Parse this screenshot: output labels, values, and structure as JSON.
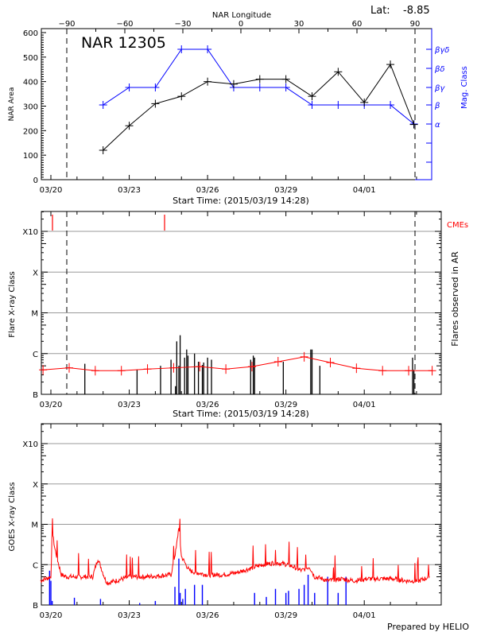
{
  "header": {
    "lat_label": "Lat:",
    "lat_value": "-8.85",
    "footer": "Prepared by HELIO"
  },
  "colors": {
    "area": "#000000",
    "mag": "#0000ff",
    "cme": "#ff0000",
    "goes_long": "#ff0000",
    "goes_short": "#0000ff",
    "grid": "#999999",
    "flare_bar": "#000000",
    "trend": "#ff0000"
  },
  "chart_data": [
    {
      "type": "line",
      "title": "NAR 12305",
      "xlabel": "Start Time: (2015/03/19 14:28)",
      "ylabel": "NAR Area",
      "y2label": "Mag. Class",
      "top_xlabel": "NAR Longitude",
      "x_unit": "days since 2015/03/19 14:28",
      "xlim": [
        0,
        14.9
      ],
      "ylim": [
        0,
        600
      ],
      "x_tick_labels": [
        {
          "label": "03/20",
          "day": 0.4
        },
        {
          "label": "03/23",
          "day": 3.4
        },
        {
          "label": "03/26",
          "day": 6.4
        },
        {
          "label": "03/29",
          "day": 9.4
        },
        {
          "label": "04/01",
          "day": 12.4
        }
      ],
      "y_ticks": [
        0,
        100,
        200,
        300,
        400,
        500,
        600
      ],
      "top_ticks": [
        {
          "label": "-90",
          "lon": -90
        },
        {
          "label": "-60",
          "lon": -60
        },
        {
          "label": "-30",
          "lon": -30
        },
        {
          "label": "0",
          "lon": 0
        },
        {
          "label": "30",
          "lon": 30
        },
        {
          "label": "60",
          "lon": 60
        },
        {
          "label": "90",
          "lon": 90
        }
      ],
      "limb_days": [
        1.0,
        14.3
      ],
      "mag_classes": [
        "α",
        "β",
        "βγ",
        "βδ",
        "βγδ"
      ],
      "series": [
        {
          "name": "NAR Area",
          "x": [
            2.4,
            3.4,
            4.4,
            5.4,
            6.4,
            7.4,
            8.4,
            9.4,
            10.4,
            11.4,
            12.4,
            13.4,
            14.3
          ],
          "values": [
            120,
            220,
            310,
            340,
            400,
            390,
            410,
            410,
            340,
            440,
            315,
            470,
            225
          ]
        },
        {
          "name": "Mag. Class",
          "x": [
            2.4,
            3.4,
            4.4,
            5.4,
            6.4,
            7.4,
            8.4,
            9.4,
            10.4,
            11.4,
            12.4,
            13.4,
            14.3
          ],
          "values": [
            "β",
            "βγ",
            "βγ",
            "βγδ",
            "βγδ",
            "βγ",
            "βγ",
            "βγ",
            "β",
            "β",
            "β",
            "β",
            "α"
          ]
        }
      ]
    },
    {
      "type": "bar",
      "xlabel": "Start Time: (2015/03/19 14:28)",
      "ylabel": "Flare X-ray Class",
      "y2label": "Flares observed in AR",
      "legend": "CMEs",
      "xlim": [
        0,
        14.9
      ],
      "y_tick_labels": [
        "B",
        "C",
        "M",
        "X",
        "X10"
      ],
      "y_unit": "log10 class index (B=0, C=1, M=2, X=3, X10=4)",
      "ylim": [
        0,
        4.45
      ],
      "limb_days": [
        1.0,
        14.3
      ],
      "cmes_day": [
        0.1,
        4.4
      ],
      "flares": [
        {
          "day": 1.7,
          "level": 0.75
        },
        {
          "day": 3.7,
          "level": 0.6
        },
        {
          "day": 4.6,
          "level": 0.7
        },
        {
          "day": 5.0,
          "level": 0.85
        },
        {
          "day": 5.17,
          "level": 0.2
        },
        {
          "day": 5.22,
          "level": 1.3
        },
        {
          "day": 5.3,
          "level": 0.7
        },
        {
          "day": 5.35,
          "level": 1.45
        },
        {
          "day": 5.52,
          "level": 0.9
        },
        {
          "day": 5.6,
          "level": 1.1
        },
        {
          "day": 5.65,
          "level": 0.95
        },
        {
          "day": 5.9,
          "level": 1.0
        },
        {
          "day": 6.05,
          "level": 0.8
        },
        {
          "day": 6.2,
          "level": 0.72
        },
        {
          "day": 6.25,
          "level": 0.78
        },
        {
          "day": 6.4,
          "level": 0.9
        },
        {
          "day": 6.55,
          "level": 0.85
        },
        {
          "day": 8.05,
          "level": 0.85
        },
        {
          "day": 8.15,
          "level": 0.95
        },
        {
          "day": 8.2,
          "level": 0.9
        },
        {
          "day": 9.3,
          "level": 0.8
        },
        {
          "day": 10.35,
          "level": 1.1
        },
        {
          "day": 10.4,
          "level": 1.1
        },
        {
          "day": 10.7,
          "level": 0.7
        },
        {
          "day": 14.25,
          "level": 0.9
        },
        {
          "day": 14.3,
          "level": 0.6
        }
      ],
      "trend": {
        "x": [
          0.1,
          1.1,
          2.1,
          3.1,
          4.1,
          5.1,
          6.1,
          7.1,
          8.1,
          9.1,
          10.1,
          11.1,
          12.1,
          13.1,
          14.1,
          15.0
        ],
        "values": [
          0.6,
          0.65,
          0.58,
          0.58,
          0.62,
          0.65,
          0.68,
          0.62,
          0.68,
          0.8,
          0.92,
          0.78,
          0.64,
          0.58,
          0.58,
          0.58
        ]
      }
    },
    {
      "type": "line",
      "xlabel": "",
      "ylabel": "GOES X-ray Class",
      "xlim": [
        0,
        14.9
      ],
      "y_tick_labels": [
        "B",
        "C",
        "M",
        "X",
        "X10"
      ],
      "ylim": [
        0,
        4.45
      ],
      "series": [
        {
          "name": "GOES long",
          "color": "red",
          "x": [
            0.0,
            0.4,
            0.45,
            0.55,
            0.7,
            0.8,
            1.0,
            1.2,
            1.5,
            1.7,
            2.0,
            2.2,
            2.5,
            2.6,
            3.0,
            3.4,
            3.7,
            4.0,
            4.5,
            5.0,
            5.2,
            5.3,
            5.4,
            5.7,
            6.0,
            6.4,
            7.0,
            7.5,
            8.0,
            8.5,
            9.0,
            9.5,
            10.0,
            10.3,
            10.5,
            10.8,
            11.0,
            11.5,
            12.0,
            12.5,
            13.0,
            13.5,
            14.0,
            14.5,
            14.9
          ],
          "values": [
            0.6,
            0.7,
            1.85,
            1.4,
            1.0,
            0.75,
            0.7,
            0.7,
            0.7,
            0.7,
            0.7,
            1.15,
            0.6,
            0.55,
            0.62,
            0.7,
            0.7,
            0.7,
            0.72,
            0.75,
            1.4,
            1.95,
            1.2,
            0.85,
            0.8,
            0.75,
            0.75,
            0.8,
            0.9,
            1.0,
            1.05,
            1.0,
            0.85,
            0.95,
            0.7,
            0.65,
            0.6,
            0.65,
            0.6,
            0.65,
            0.65,
            0.65,
            0.6,
            0.6,
            0.7
          ]
        },
        {
          "name": "GOES short",
          "color": "blue",
          "x": [
            0.35,
            0.4,
            0.45,
            1.3,
            2.3,
            3.8,
            4.4,
            5.15,
            5.3,
            5.35,
            5.45,
            5.55,
            5.9,
            6.2,
            8.2,
            8.65,
            9.0,
            9.4,
            9.5,
            9.9,
            10.1,
            10.25,
            10.5,
            11.0,
            11.4,
            11.7
          ],
          "values": [
            0.85,
            0.6,
            0.1,
            0.18,
            0.15,
            0.05,
            0.1,
            0.45,
            1.15,
            0.3,
            0.15,
            0.4,
            0.5,
            0.5,
            0.3,
            0.2,
            0.4,
            0.3,
            0.35,
            0.4,
            0.5,
            0.75,
            0.3,
            0.7,
            0.3,
            0.7
          ]
        }
      ]
    }
  ]
}
